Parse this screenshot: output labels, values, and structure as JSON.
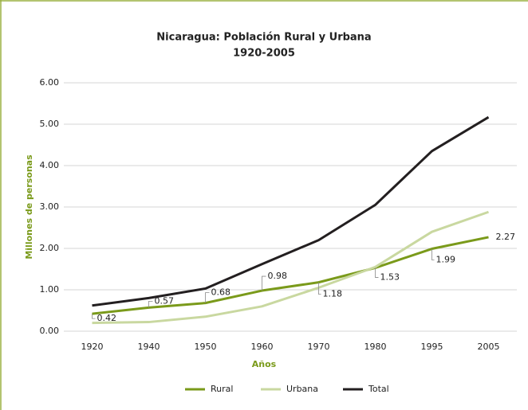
{
  "chart_data": {
    "type": "line",
    "title": "Nicaragua: Población Rural y Urbana",
    "subtitle": "1920-2005",
    "x_label": "Años",
    "y_label": "Millones de personas",
    "categories": [
      "1920",
      "1940",
      "1950",
      "1960",
      "1970",
      "1980",
      "1995",
      "2005"
    ],
    "series": [
      {
        "name": "Rural",
        "color": "#7a9a1a",
        "values": [
          0.42,
          0.57,
          0.68,
          0.98,
          1.18,
          1.53,
          1.99,
          2.27
        ]
      },
      {
        "name": "Urbana",
        "color": "#c9d8a0",
        "values": [
          0.2,
          0.22,
          0.35,
          0.6,
          1.05,
          1.55,
          2.4,
          2.88
        ]
      },
      {
        "name": "Total",
        "color": "#231f20",
        "values": [
          0.62,
          0.8,
          1.03,
          1.62,
          2.2,
          3.05,
          4.35,
          5.17
        ]
      }
    ],
    "ylim": [
      0,
      6
    ],
    "yticks": [
      {
        "value": 0,
        "label": "0.00"
      },
      {
        "value": 1,
        "label": "1.00"
      },
      {
        "value": 2,
        "label": "2.00"
      },
      {
        "value": 3,
        "label": "3.00"
      },
      {
        "value": 4,
        "label": "4.00"
      },
      {
        "value": 5,
        "label": "5.00"
      },
      {
        "value": 6,
        "label": "6.00"
      }
    ],
    "grid": true,
    "legend": "bottom"
  }
}
